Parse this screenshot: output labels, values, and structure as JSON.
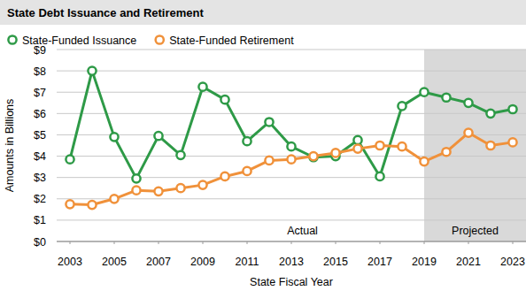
{
  "chart_data": {
    "type": "line",
    "title": "State Debt Issuance and Retirement",
    "x_label": "State Fiscal Year",
    "y_label": "Amounts in Billions",
    "x": [
      2003,
      2004,
      2005,
      2006,
      2007,
      2008,
      2009,
      2010,
      2011,
      2012,
      2013,
      2014,
      2015,
      2016,
      2017,
      2018,
      2019,
      2020,
      2021,
      2022,
      2023
    ],
    "series": [
      {
        "name": "State-Funded Issuance",
        "color": "#2e9a47",
        "marker": "circle",
        "values": [
          3.85,
          8.0,
          4.9,
          2.95,
          4.95,
          4.05,
          7.25,
          6.65,
          4.7,
          5.6,
          4.45,
          3.95,
          4.0,
          4.75,
          3.05,
          6.35,
          7.0,
          6.75,
          6.5,
          6.0,
          6.2
        ]
      },
      {
        "name": "State-Funded Retirement",
        "color": "#f0913a",
        "marker": "circle",
        "values": [
          1.75,
          1.72,
          2.0,
          2.4,
          2.35,
          2.5,
          2.65,
          3.05,
          3.3,
          3.8,
          3.85,
          4.0,
          4.15,
          4.35,
          4.5,
          4.45,
          3.75,
          4.2,
          5.1,
          4.5,
          4.65
        ]
      }
    ],
    "xlim": [
      2002.4,
      2023.6
    ],
    "xticks": [
      2003,
      2005,
      2007,
      2009,
      2011,
      2013,
      2015,
      2017,
      2019,
      2021,
      2023
    ],
    "ylim": [
      0,
      9
    ],
    "yticks": [
      {
        "value": 0,
        "label": "$0"
      },
      {
        "value": 1,
        "label": "$1"
      },
      {
        "value": 2,
        "label": "$2"
      },
      {
        "value": 3,
        "label": "$3"
      },
      {
        "value": 4,
        "label": "$4"
      },
      {
        "value": 5,
        "label": "$5"
      },
      {
        "value": 6,
        "label": "$6"
      },
      {
        "value": 7,
        "label": "$7"
      },
      {
        "value": 8,
        "label": "$8"
      },
      {
        "value": 9,
        "label": "$9"
      }
    ],
    "regions": [
      {
        "label": "Actual",
        "label_x": 2013.5,
        "start": 2002.4,
        "end": 2019,
        "color": "#ffffff"
      },
      {
        "label": "Projected",
        "label_x": 2021.3,
        "start": 2019,
        "end": 2023.6,
        "color": "#d9d9d9"
      }
    ],
    "grid": true,
    "legend": "top-left"
  }
}
